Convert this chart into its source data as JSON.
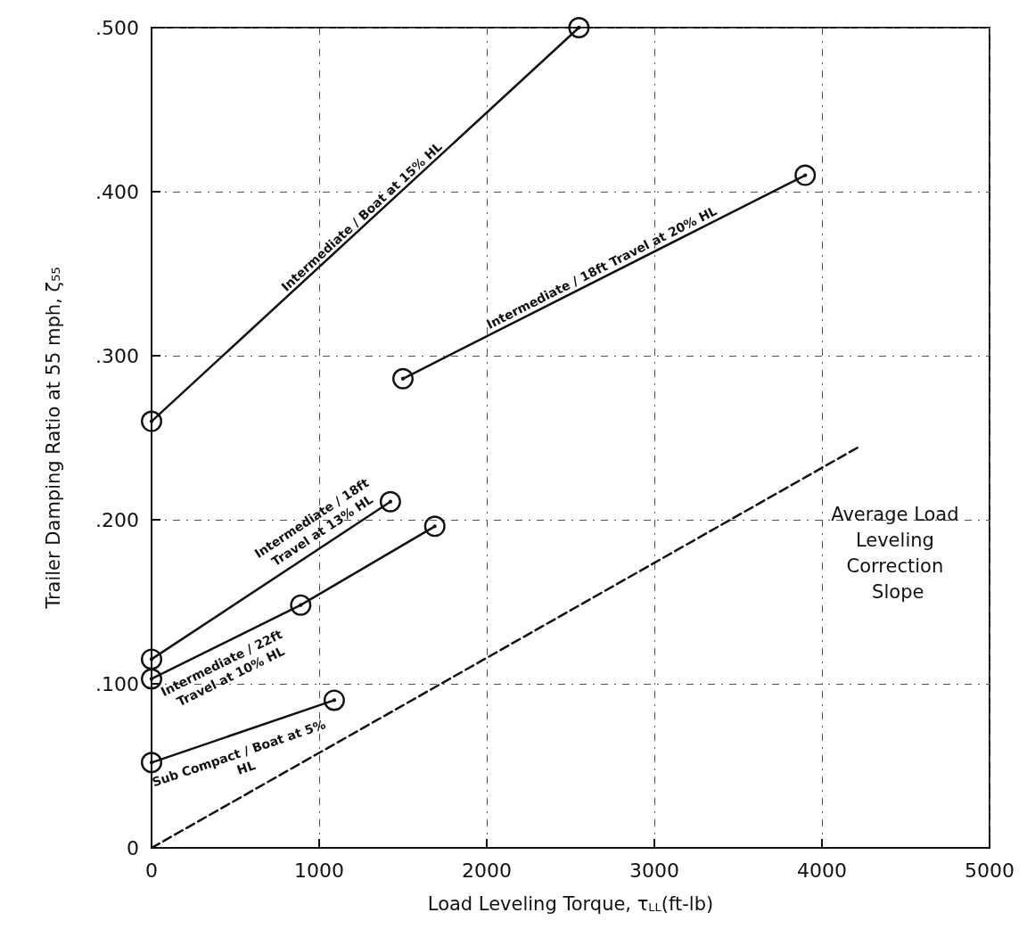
{
  "chart_data": {
    "type": "line",
    "xlabel": "Load Leveling Torque, τ$_{LL}$(ft-lb)",
    "ylabel": "Trailer Damping Ratio at 55 mph, ζ₅₅",
    "xlim": [
      0,
      5000
    ],
    "xticks": [
      0,
      1000,
      2000,
      3000,
      4000,
      5000
    ],
    "ylim": [
      0,
      0.5
    ],
    "yticks": [
      {
        "value": 0,
        "label": "0"
      },
      {
        "value": 0.1,
        "label": ".100"
      },
      {
        "value": 0.2,
        "label": ".200"
      },
      {
        "value": 0.3,
        "label": ".300"
      },
      {
        "value": 0.4,
        "label": ".400"
      },
      {
        "value": 0.5,
        "label": ".500"
      }
    ],
    "grid": true,
    "marker": "circle",
    "line_style": "solid",
    "series": [
      {
        "name": "Intermediate / Boat at 15% HL",
        "color": "#111111",
        "x": [
          0,
          2550
        ],
        "values": [
          0.26,
          0.5
        ]
      },
      {
        "name": "Intermediate / 18ft Travel at 20% HL",
        "color": "#111111",
        "x": [
          1500,
          3900
        ],
        "values": [
          0.286,
          0.41
        ]
      },
      {
        "name": "Intermediate / 18ft Travel at 13% HL",
        "color": "#111111",
        "x": [
          0,
          1425
        ],
        "values": [
          0.115,
          0.211
        ]
      },
      {
        "name": "Intermediate / 22ft Travel at 10% HL",
        "color": "#111111",
        "x": [
          0,
          890,
          1690
        ],
        "values": [
          0.103,
          0.148,
          0.196
        ]
      },
      {
        "name": "Sub Compact / Boat at 5% HL",
        "color": "#111111",
        "x": [
          0,
          1090
        ],
        "values": [
          0.052,
          0.09
        ]
      },
      {
        "name": "Average Load Leveling Correction Slope",
        "color": "#111111",
        "x": [
          0,
          4230
        ],
        "values": [
          0,
          0.245
        ],
        "marker": "none",
        "line_style": "dashed"
      }
    ]
  }
}
